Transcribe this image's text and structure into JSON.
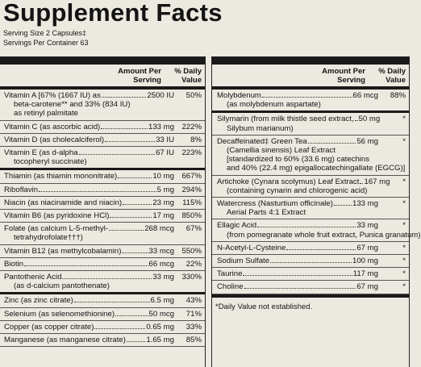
{
  "header": {
    "title": "Supplement Facts",
    "serving_size": "Serving Size 2 Capsules‡",
    "servings_per_container": "Servings Per Container 63"
  },
  "left": {
    "amount_header": "Amount Per Serving",
    "dv_header": "% Daily Value",
    "rows": [
      {
        "lines": [
          "Vitamin A [67% (1667 IU) as",
          "beta-carotene** and 33% (834 IU)",
          "as retinyl palmitate"
        ],
        "amount": "2500 IU",
        "dv": "50%"
      },
      {
        "lines": [
          "Vitamin C (as ascorbic acid)"
        ],
        "amount": "133 mg",
        "dv": "222%"
      },
      {
        "lines": [
          "Vitamin D (as cholecalciferol)"
        ],
        "amount": "33 IU",
        "dv": "8%"
      },
      {
        "lines": [
          "Vitamin E (as d-alpha",
          "tocopheryl succinate)"
        ],
        "amount": "67 IU",
        "dv": "223%"
      },
      {
        "lines": [
          "Thiamin (as thiamin mononitrate)"
        ],
        "amount": "10 mg",
        "dv": "667%"
      },
      {
        "lines": [
          "Riboflavin"
        ],
        "amount": "5 mg",
        "dv": "294%"
      },
      {
        "lines": [
          "Niacin (as niacinamide and niacin)"
        ],
        "amount": "23 mg",
        "dv": "115%"
      },
      {
        "lines": [
          "Vitamin B6 (as pyridoxine HCl)"
        ],
        "amount": "17 mg",
        "dv": "850%"
      },
      {
        "lines": [
          "Folate (as calcium L-5-methyl-",
          "tetrahydrofolate†††)"
        ],
        "amount": "268 mcg",
        "dv": "67%"
      },
      {
        "lines": [
          "Vitamin B12 (as methylcobalamin)"
        ],
        "amount": "33 mcg",
        "dv": "550%"
      },
      {
        "lines": [
          "Biotin"
        ],
        "amount": "66 mcg",
        "dv": "22%"
      },
      {
        "lines": [
          "Pantothenic Acid",
          "(as d-calcium pantothenate)"
        ],
        "amount": "33 mg",
        "dv": "330%"
      },
      {
        "lines": [
          "Zinc (as zinc citrate)"
        ],
        "amount": "6.5 mg",
        "dv": "43%"
      },
      {
        "lines": [
          "Selenium (as selenomethionine)"
        ],
        "amount": "50 mcg",
        "dv": "71%"
      },
      {
        "lines": [
          "Copper (as copper citrate)"
        ],
        "amount": "0.65 mg",
        "dv": "33%"
      },
      {
        "lines": [
          "Manganese (as manganese citrate)"
        ],
        "amount": "1.65 mg",
        "dv": "85%"
      }
    ]
  },
  "right": {
    "amount_header": "Amount Per Serving",
    "dv_header": "% Daily Value",
    "rows": [
      {
        "lines": [
          "Molybdenum",
          "(as molybdenum aspartate)"
        ],
        "amount": "66 mcg",
        "dv": "88%"
      },
      {
        "lines": [
          "Silymarin (from milk thistle seed extract,",
          "Silybum marianum)"
        ],
        "amount": "50 mg",
        "dv": "*"
      },
      {
        "lines": [
          "Decaffeinated‡ Green Tea",
          "(Camellia sinensis) Leaf Extract",
          "[standardized to 60% (33.6 mg) catechins",
          "and 40% (22.4 mg) epigallocatechingallate (EGCG)]"
        ],
        "amount": "56 mg",
        "dv": "*"
      },
      {
        "lines": [
          "Artichoke (Cynara scolymus) Leaf Extract",
          "(containing cynarin and chlorogenic acid)"
        ],
        "amount": "167 mg",
        "dv": "*"
      },
      {
        "lines": [
          "Watercress (Nasturtium officinale)",
          "Aerial Parts 4:1 Extract"
        ],
        "amount": "133 mg",
        "dv": "*"
      },
      {
        "lines": [
          "Ellagic Acid",
          "(from pomegranate whole fruit extract, Punica granatum)"
        ],
        "amount": "33 mg",
        "dv": "*"
      },
      {
        "lines": [
          "N-Acetyl-L-Cysteine"
        ],
        "amount": "67 mg",
        "dv": "*"
      },
      {
        "lines": [
          "Sodium Sulfate"
        ],
        "amount": "100 mg",
        "dv": "*"
      },
      {
        "lines": [
          "Taurine"
        ],
        "amount": "117 mg",
        "dv": "*"
      },
      {
        "lines": [
          "Choline"
        ],
        "amount": "67 mg",
        "dv": "*"
      }
    ],
    "footnote": "*Daily Value not established."
  }
}
